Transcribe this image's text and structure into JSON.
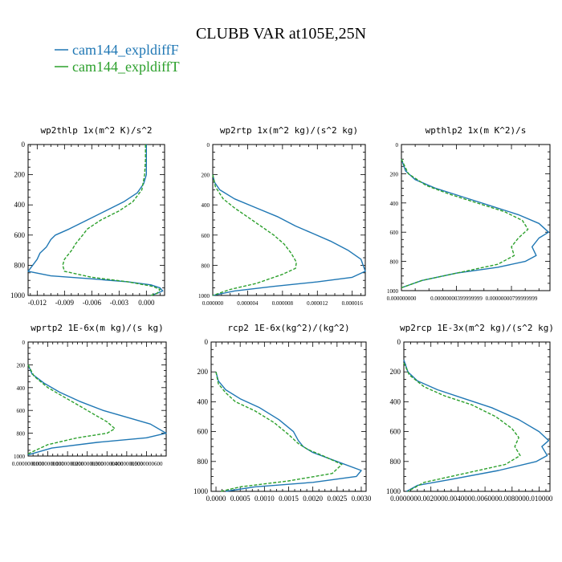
{
  "figure": {
    "title": "CLUBB VAR at105E,25N",
    "legend": [
      {
        "label": "cam144_expldiffF",
        "color": "#1f77b4",
        "dash": false
      },
      {
        "label": "cam144_expldiffT",
        "color": "#2ca02c",
        "dash": true
      }
    ]
  },
  "chart_data": [
    {
      "type": "line",
      "title": "wp2thlp  1x(m^2 K)/s^2",
      "xlim": [
        -0.013,
        0.002
      ],
      "xticks": [
        -0.012,
        -0.009,
        -0.006,
        -0.003,
        0.0
      ],
      "xtick_labels": [
        "-0.012",
        "-0.009",
        "-0.006",
        "-0.003",
        "0.000"
      ],
      "ylim": [
        0,
        1000
      ],
      "yticks": [
        0,
        200,
        400,
        600,
        800,
        1000
      ],
      "ytick_labels": [
        "0",
        "200",
        "400",
        "600",
        "800",
        "1000"
      ],
      "series": [
        {
          "name": "cam144_expldiffF",
          "x": [
            0,
            0,
            0,
            -0.0003,
            -0.001,
            -0.0025,
            -0.0045,
            -0.0065,
            -0.0085,
            -0.01,
            -0.0105,
            -0.011,
            -0.0117,
            -0.012,
            -0.0125,
            -0.013,
            -0.0105,
            -0.006,
            -0.002,
            0.0005,
            0.0015,
            0.0018,
            0.0012,
            0.0005
          ],
          "y": [
            0,
            100,
            200,
            260,
            320,
            380,
            440,
            500,
            560,
            600,
            630,
            680,
            720,
            760,
            800,
            840,
            870,
            890,
            910,
            930,
            950,
            970,
            985,
            1000
          ]
        },
        {
          "name": "cam144_expldiffT",
          "x": [
            -0.0001,
            -0.0001,
            -0.0002,
            -0.0005,
            -0.0015,
            -0.003,
            -0.005,
            -0.0065,
            -0.007,
            -0.0078,
            -0.0082,
            -0.009,
            -0.0092,
            -0.009,
            -0.006,
            -0.002,
            0.0007,
            0.0015,
            0.0012,
            0.0005
          ],
          "y": [
            0,
            100,
            200,
            300,
            380,
            440,
            500,
            560,
            600,
            660,
            700,
            760,
            800,
            840,
            880,
            910,
            940,
            960,
            985,
            1000
          ]
        }
      ]
    },
    {
      "type": "line",
      "title": "wp2rtp  1x(m^2 kg)/(s^2 kg)",
      "xlim": [
        0.0,
        1.75e-05
      ],
      "xticks": [
        0.0,
        4e-06,
        8e-06,
        1.2e-05,
        1.6e-05
      ],
      "xtick_labels": [
        "0.000000",
        "0.000004",
        "0.000008",
        "0.000012",
        "0.000016"
      ],
      "ylim": [
        0,
        1000
      ],
      "yticks": [
        0,
        200,
        400,
        600,
        800,
        1000
      ],
      "ytick_labels": [
        "0",
        "200",
        "400",
        "600",
        "800",
        "1000"
      ],
      "series": [
        {
          "name": "cam144_expldiffF",
          "x": [
            0.0,
            2e-07,
            8e-07,
            2.5e-06,
            5e-06,
            7.5e-06,
            9.5e-06,
            1.15e-05,
            1.35e-05,
            1.55e-05,
            1.7e-05,
            1.75e-05,
            1.6e-05,
            1.2e-05,
            7e-06,
            2.5e-06,
            0.0
          ],
          "y": [
            200,
            250,
            300,
            360,
            420,
            480,
            540,
            590,
            640,
            700,
            760,
            840,
            880,
            910,
            940,
            970,
            1000
          ]
        },
        {
          "name": "cam144_expldiffT",
          "x": [
            0.0,
            3e-07,
            1.2e-06,
            2.5e-06,
            4e-06,
            5.5e-06,
            7e-06,
            8.2e-06,
            9e-06,
            9.6e-06,
            9.5e-06,
            8e-06,
            5e-06,
            2e-06,
            0.0
          ],
          "y": [
            200,
            280,
            360,
            420,
            480,
            540,
            600,
            660,
            720,
            780,
            820,
            860,
            920,
            960,
            1000
          ]
        }
      ]
    },
    {
      "type": "line",
      "title": "wpthlp2  1x(m K^2)/s",
      "xlim": [
        0.0,
        1.08e-08
      ],
      "xticks": [
        0.0,
        4e-09,
        8e-09
      ],
      "xtick_labels": [
        "0.000000000",
        "0.00000000399999999",
        "0.00000000799999999"
      ],
      "ylim": [
        0,
        1000
      ],
      "yticks": [
        0,
        200,
        400,
        600,
        800,
        1000
      ],
      "ytick_labels": [
        "0",
        "200",
        "400",
        "600",
        "800",
        "1000"
      ],
      "series": [
        {
          "name": "cam144_expldiffF",
          "x": [
            0.0,
            3e-10,
            1e-09,
            2.5e-09,
            4.5e-09,
            6.5e-09,
            8.5e-09,
            1e-08,
            1.07e-08,
            1e-08,
            9.5e-09,
            9.8e-09,
            9e-09,
            7e-09,
            4e-09,
            1.5e-09,
            0.0
          ],
          "y": [
            100,
            180,
            240,
            300,
            360,
            420,
            480,
            540,
            600,
            640,
            700,
            760,
            800,
            840,
            880,
            930,
            980
          ]
        },
        {
          "name": "cam144_expldiffT",
          "x": [
            0.0,
            5e-10,
            1.8e-09,
            3.5e-09,
            5.5e-09,
            7.5e-09,
            8.8e-09,
            9.2e-09,
            8.5e-09,
            8e-09,
            8.2e-09,
            7e-09,
            4e-09,
            1.5e-09,
            0.0
          ],
          "y": [
            100,
            200,
            280,
            340,
            400,
            460,
            520,
            580,
            640,
            700,
            760,
            820,
            880,
            930,
            980
          ]
        }
      ]
    },
    {
      "type": "line",
      "title": "wprtp2  1E-6x(m kg)/(s kg)",
      "xlim": [
        0.0,
        7e-08
      ],
      "xticks": [
        0.0,
        1e-08,
        2e-08,
        3e-08,
        4e-08,
        5e-08,
        6e-08
      ],
      "xtick_labels": [
        "0.0000000000",
        "0.0000000100",
        "0.0000000200",
        "0.0000000300",
        "0.0000000400",
        "0.0000000500",
        "0.0000000600"
      ],
      "ylim": [
        0,
        1000
      ],
      "yticks": [
        0,
        200,
        400,
        600,
        800,
        1000
      ],
      "ytick_labels": [
        "0",
        "200",
        "400",
        "600",
        "800",
        "1000"
      ],
      "series": [
        {
          "name": "cam144_expldiffF",
          "x": [
            0.0,
            2e-09,
            8e-09,
            1.6e-08,
            2.6e-08,
            3.8e-08,
            5e-08,
            6.2e-08,
            7e-08,
            6e-08,
            3.5e-08,
            1.2e-08,
            0.0
          ],
          "y": [
            200,
            280,
            360,
            440,
            520,
            600,
            660,
            720,
            800,
            840,
            880,
            930,
            990
          ]
        },
        {
          "name": "cam144_expldiffT",
          "x": [
            0.0,
            3e-09,
            1e-08,
            1.8e-08,
            2.6e-08,
            3.4e-08,
            4e-08,
            4.4e-08,
            4e-08,
            2.5e-08,
            1e-08,
            0.0
          ],
          "y": [
            200,
            300,
            400,
            480,
            560,
            640,
            700,
            760,
            800,
            840,
            900,
            980
          ]
        }
      ]
    },
    {
      "type": "line",
      "title": "rcp2  1E-6x(kg^2)/(kg^2)",
      "xlim": [
        -0.0001,
        0.0031
      ],
      "xticks": [
        0.0,
        0.0005,
        0.001,
        0.0015,
        0.002,
        0.0025,
        0.003
      ],
      "xtick_labels": [
        "0.0000",
        "0.0005",
        "0.0010",
        "0.0015",
        "0.0020",
        "0.0025",
        "0.0030"
      ],
      "ylim": [
        0,
        1000
      ],
      "yticks": [
        0,
        200,
        400,
        600,
        800,
        1000
      ],
      "ytick_labels": [
        "0",
        "200",
        "400",
        "600",
        "800",
        "1000"
      ],
      "series": [
        {
          "name": "cam144_expldiffF",
          "x": [
            0.0,
            5e-05,
            0.0002,
            0.0005,
            0.0009,
            0.0013,
            0.0016,
            0.0017,
            0.0018,
            0.002,
            0.0025,
            0.003,
            0.0029,
            0.002,
            0.0008,
            0.0002
          ],
          "y": [
            200,
            260,
            320,
            380,
            440,
            520,
            600,
            660,
            700,
            740,
            800,
            860,
            900,
            940,
            970,
            1000
          ]
        },
        {
          "name": "cam144_expldiffT",
          "x": [
            0.0,
            5e-05,
            0.0002,
            0.0004,
            0.0008,
            0.0012,
            0.0015,
            0.0017,
            0.0019,
            0.0022,
            0.0026,
            0.0024,
            0.0015,
            0.0005,
            0.0001
          ],
          "y": [
            200,
            280,
            340,
            400,
            460,
            540,
            620,
            680,
            720,
            760,
            820,
            880,
            930,
            970,
            1000
          ]
        }
      ]
    },
    {
      "type": "line",
      "title": "wp2rcp  1E-3x(m^2 kg)/(s^2 kg)",
      "xlim": [
        0.0,
        0.0108
      ],
      "xticks": [
        0.0,
        0.002,
        0.004,
        0.006,
        0.008,
        0.01
      ],
      "xtick_labels": [
        "0.000000",
        "0.002000",
        "0.004000",
        "0.006000",
        "0.008000",
        "0.010000"
      ],
      "ylim": [
        0,
        1000
      ],
      "yticks": [
        0,
        200,
        400,
        600,
        800,
        1000
      ],
      "ytick_labels": [
        "0",
        "200",
        "400",
        "600",
        "800",
        "1000"
      ],
      "series": [
        {
          "name": "cam144_expldiffF",
          "x": [
            0.0,
            0.0003,
            0.001,
            0.0025,
            0.0045,
            0.0065,
            0.0085,
            0.01,
            0.0107,
            0.0102,
            0.0106,
            0.0098,
            0.007,
            0.0035,
            0.001,
            0.0002
          ],
          "y": [
            120,
            200,
            260,
            320,
            380,
            440,
            520,
            600,
            660,
            700,
            760,
            800,
            860,
            920,
            960,
            1000
          ]
        },
        {
          "name": "cam144_expldiffT",
          "x": [
            0.0,
            0.0004,
            0.0015,
            0.003,
            0.005,
            0.0068,
            0.008,
            0.0085,
            0.0082,
            0.0086,
            0.0075,
            0.0045,
            0.0015,
            0.0003
          ],
          "y": [
            140,
            220,
            300,
            360,
            420,
            500,
            580,
            640,
            700,
            760,
            820,
            880,
            940,
            1000
          ]
        }
      ]
    }
  ]
}
